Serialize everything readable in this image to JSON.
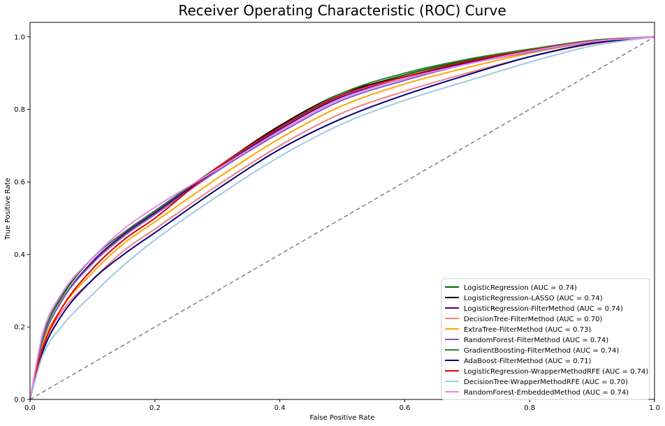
{
  "chart_data": {
    "type": "line",
    "title": "Receiver Operating Characteristic (ROC) Curve",
    "xlabel": "False Positive Rate",
    "ylabel": "True Positive Rate",
    "xlim": [
      0,
      1
    ],
    "ylim": [
      0,
      1.04
    ],
    "x_ticks": [
      "0.0",
      "0.2",
      "0.4",
      "0.6",
      "0.8",
      "1.0"
    ],
    "y_ticks": [
      "0.0",
      "0.2",
      "0.4",
      "0.6",
      "0.8",
      "1.0"
    ],
    "grid": false,
    "legend_position": "lower-right",
    "diagonal": {
      "x": [
        0,
        1
      ],
      "y": [
        0,
        1
      ],
      "color": "#808080",
      "style": "dashed"
    },
    "x": [
      0,
      0.02,
      0.05,
      0.1,
      0.15,
      0.2,
      0.3,
      0.4,
      0.5,
      0.6,
      0.7,
      0.8,
      0.9,
      1.0
    ],
    "series": [
      {
        "name": "LogisticRegression (AUC = 0.74)",
        "color": "#006400",
        "values": [
          0,
          0.17,
          0.28,
          0.39,
          0.46,
          0.52,
          0.64,
          0.75,
          0.84,
          0.895,
          0.935,
          0.965,
          0.99,
          1.0
        ]
      },
      {
        "name": "LogisticRegression-LASSO (AUC = 0.74)",
        "color": "#000000",
        "values": [
          0,
          0.16,
          0.27,
          0.38,
          0.455,
          0.515,
          0.64,
          0.755,
          0.845,
          0.89,
          0.93,
          0.962,
          0.988,
          1.0
        ]
      },
      {
        "name": "LogisticRegression-FilterMethod (AUC = 0.74)",
        "color": "#4b0082",
        "values": [
          0,
          0.16,
          0.27,
          0.38,
          0.455,
          0.515,
          0.635,
          0.745,
          0.835,
          0.885,
          0.928,
          0.96,
          0.987,
          1.0
        ]
      },
      {
        "name": "DecisionTree-FilterMethod (AUC = 0.70)",
        "color": "#f08080",
        "values": [
          0,
          0.14,
          0.24,
          0.33,
          0.41,
          0.47,
          0.59,
          0.7,
          0.79,
          0.85,
          0.9,
          0.945,
          0.98,
          1.0
        ]
      },
      {
        "name": "ExtraTree-FilterMethod (AUC = 0.73)",
        "color": "#ffa500",
        "values": [
          0,
          0.15,
          0.25,
          0.35,
          0.43,
          0.49,
          0.61,
          0.72,
          0.81,
          0.87,
          0.915,
          0.955,
          0.985,
          1.0
        ]
      },
      {
        "name": "RandomForest-FilterMethod (AUC = 0.74)",
        "color": "#7e57c2",
        "values": [
          0,
          0.16,
          0.27,
          0.375,
          0.45,
          0.51,
          0.63,
          0.735,
          0.825,
          0.88,
          0.925,
          0.958,
          0.986,
          1.0
        ]
      },
      {
        "name": "GradientBoosting-FilterMethod (AUC = 0.74)",
        "color": "#2e7d32",
        "values": [
          0,
          0.17,
          0.285,
          0.39,
          0.46,
          0.52,
          0.64,
          0.75,
          0.845,
          0.9,
          0.938,
          0.966,
          0.99,
          1.0
        ]
      },
      {
        "name": "AdaBoost-FilterMethod (AUC = 0.71)",
        "color": "#000080",
        "values": [
          0,
          0.13,
          0.23,
          0.33,
          0.4,
          0.46,
          0.58,
          0.69,
          0.775,
          0.84,
          0.895,
          0.945,
          0.982,
          1.0
        ]
      },
      {
        "name": "LogisticRegression-WrapperMethodRFE (AUC = 0.74)",
        "color": "#e00000",
        "values": [
          0,
          0.14,
          0.25,
          0.36,
          0.44,
          0.5,
          0.64,
          0.75,
          0.84,
          0.89,
          0.932,
          0.962,
          0.988,
          1.0
        ]
      },
      {
        "name": "DecisionTree-WrapperMethodRFE (AUC = 0.70)",
        "color": "#9ecae1",
        "values": [
          0,
          0.12,
          0.2,
          0.29,
          0.37,
          0.44,
          0.56,
          0.67,
          0.76,
          0.825,
          0.878,
          0.93,
          0.975,
          1.0
        ]
      },
      {
        "name": "RandomForest-EmbeddedMethod (AUC = 0.74)",
        "color": "#ee82ee",
        "values": [
          0,
          0.18,
          0.29,
          0.39,
          0.47,
          0.53,
          0.635,
          0.74,
          0.83,
          0.885,
          0.925,
          0.96,
          0.987,
          1.0
        ]
      }
    ]
  }
}
